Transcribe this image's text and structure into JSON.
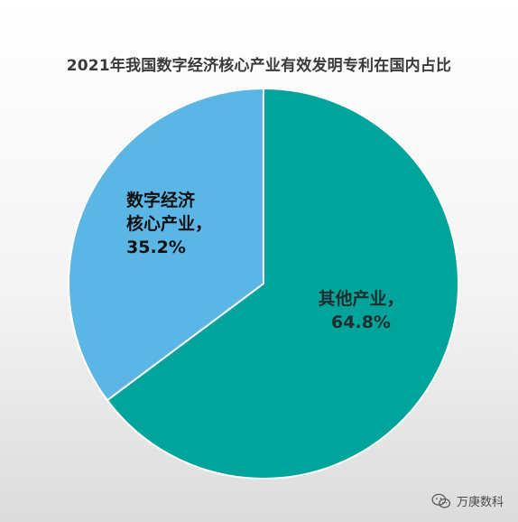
{
  "chart_data": {
    "type": "pie",
    "title": "2021年我国数字经济核心产业有效发明专利在国内占比",
    "slices": [
      {
        "label_lines": [
          "其他产业，",
          "64.8%"
        ],
        "value": 64.8,
        "color": "#00a49b"
      },
      {
        "label_lines": [
          "数字经济",
          "核心产业，",
          "35.2%"
        ],
        "value": 35.2,
        "color": "#5bb5e5"
      }
    ],
    "start_angle_deg": 0,
    "direction": "clockwise"
  },
  "watermark": {
    "text": "万庚数科",
    "icon": "wechat-icon"
  },
  "colors": {
    "slice_border": "#ffffff",
    "title": "#3a3a3a"
  }
}
